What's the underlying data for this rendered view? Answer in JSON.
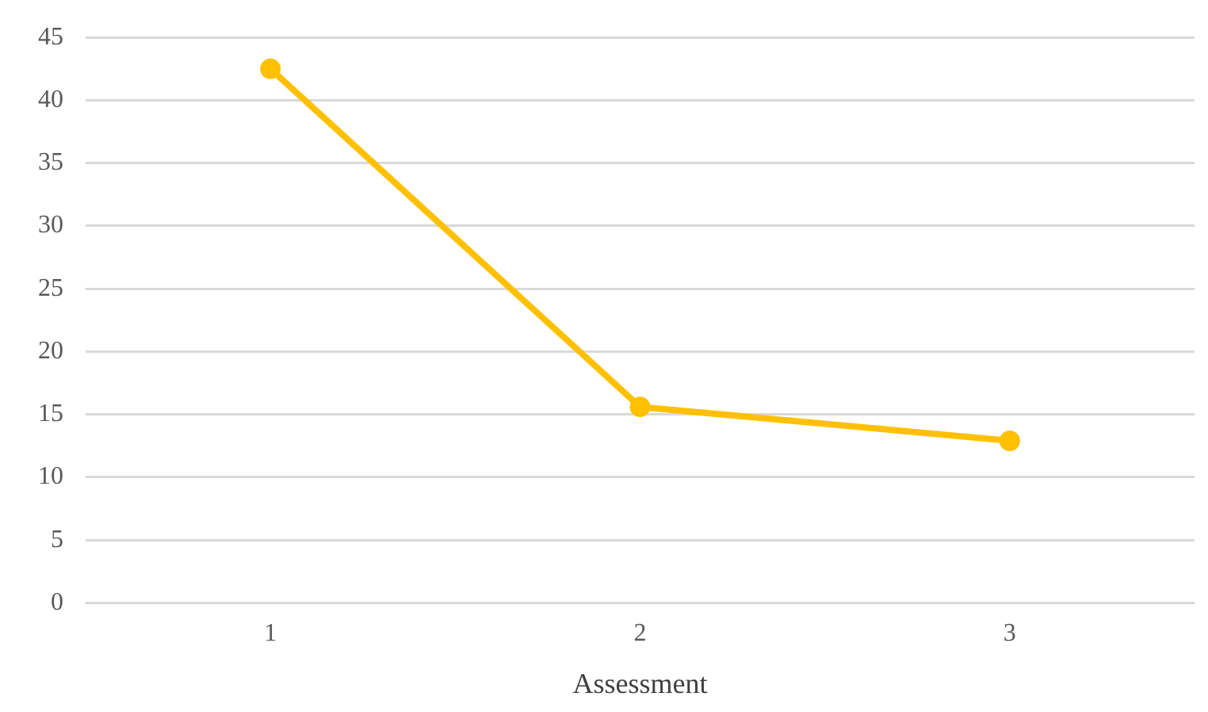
{
  "chart_data": {
    "type": "line",
    "xlabel": "Assessment",
    "categories": [
      "1",
      "2",
      "3"
    ],
    "series": [
      {
        "color": "#ffc000",
        "values": [
          42.5,
          15.6,
          12.9
        ]
      }
    ],
    "ylim": [
      0,
      45
    ],
    "yticks": [
      0,
      5,
      10,
      15,
      20,
      25,
      30,
      35,
      40,
      45
    ],
    "grid": "y",
    "legend": false,
    "marker": "circle",
    "line_style": "solid"
  }
}
